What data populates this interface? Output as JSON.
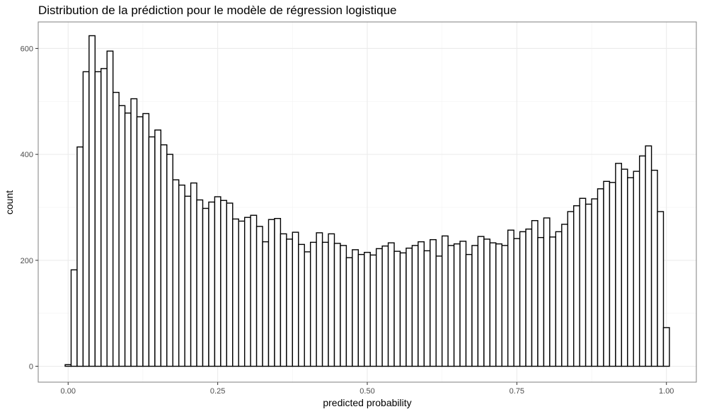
{
  "chart_data": {
    "type": "bar",
    "subtype": "histogram",
    "title": "Distribution de la prédiction pour le modèle de régression logistique",
    "xlabel": "predicted probability",
    "ylabel": "count",
    "xlim": [
      -0.05,
      1.05
    ],
    "ylim": [
      -30,
      650
    ],
    "xticks": [
      0.0,
      0.25,
      0.5,
      0.75,
      1.0
    ],
    "xtick_labels": [
      "0.00",
      "0.25",
      "0.50",
      "0.75",
      "1.00"
    ],
    "yticks": [
      0,
      200,
      400,
      600
    ],
    "ytick_labels": [
      "0",
      "200",
      "400",
      "600"
    ],
    "grid": true,
    "legend": "none",
    "bin_width": 0.01,
    "bin_centers_start": 0.0,
    "values": [
      3,
      182,
      414,
      556,
      624,
      556,
      562,
      595,
      517,
      492,
      478,
      505,
      471,
      477,
      433,
      446,
      418,
      400,
      352,
      342,
      321,
      346,
      314,
      298,
      310,
      320,
      313,
      308,
      278,
      274,
      281,
      285,
      264,
      235,
      277,
      279,
      250,
      240,
      253,
      230,
      216,
      234,
      252,
      234,
      250,
      232,
      228,
      205,
      220,
      211,
      215,
      210,
      222,
      227,
      233,
      217,
      214,
      223,
      228,
      235,
      218,
      239,
      208,
      246,
      228,
      231,
      236,
      211,
      228,
      245,
      240,
      233,
      231,
      228,
      257,
      241,
      254,
      259,
      275,
      243,
      280,
      244,
      254,
      268,
      292,
      303,
      317,
      306,
      316,
      335,
      349,
      347,
      383,
      372,
      356,
      368,
      397,
      416,
      370,
      292,
      73
    ],
    "fill_color": "#ffffff",
    "edge_color": "#000000",
    "panel_border_color": "#7f7f7f",
    "grid_major_color": "#ebebeb",
    "grid_minor_color": "#f4f4f4"
  }
}
